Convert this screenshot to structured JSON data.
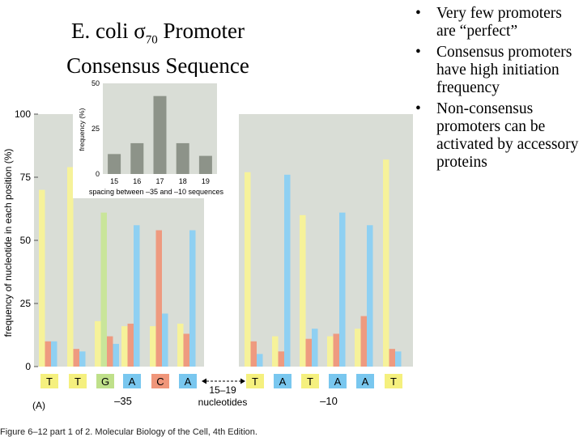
{
  "slide": {
    "title_line1_pre": "E. coli ",
    "sigma": "σ",
    "sigma_sub": "70",
    "title_line1_post": " Promoter",
    "title_line2": "Consensus Sequence",
    "bullets": [
      "Very few promoters are “perfect”",
      "Consensus promoters have high  initiation frequency",
      "Non-consensus promoters can be activated  by accessory proteins"
    ],
    "caption": "Figure 6–12 part 1 of 2. Molecular Biology of the Cell, 4th Edition."
  },
  "chart_data": [
    {
      "type": "bar",
      "ylabel": "frequency of nucleotide in each position (%)",
      "ylim": [
        0,
        100
      ],
      "yticks": [
        0,
        25,
        50,
        75,
        100
      ],
      "panel_label": "(A)",
      "positions": [
        {
          "base": "T",
          "box": "#f5f07e",
          "values": {
            "T": 70,
            "C": 10,
            "A": 10
          }
        },
        {
          "base": "T",
          "box": "#f5f07e",
          "values": {
            "T": 79,
            "C": 7,
            "A": 6
          }
        },
        {
          "base": "G",
          "box": "#bfe08a",
          "values": {
            "T": 18,
            "G": 61,
            "C": 12,
            "A": 9
          }
        },
        {
          "base": "A",
          "box": "#79c7ef",
          "values": {
            "T": 16,
            "C": 17,
            "A": 56
          }
        },
        {
          "base": "C",
          "box": "#f0967a",
          "values": {
            "T": 16,
            "C": 54,
            "A": 21
          }
        },
        {
          "base": "A",
          "box": "#79c7ef",
          "values": {
            "T": 17,
            "C": 13,
            "A": 54
          }
        },
        {
          "base": "T",
          "box": "#f5f07e",
          "values": {
            "T": 77,
            "C": 10,
            "A": 5
          }
        },
        {
          "base": "A",
          "box": "#79c7ef",
          "values": {
            "T": 12,
            "C": 6,
            "A": 76
          }
        },
        {
          "base": "T",
          "box": "#f5f07e",
          "values": {
            "T": 60,
            "C": 11,
            "A": 15
          }
        },
        {
          "base": "A",
          "box": "#79c7ef",
          "values": {
            "T": 12,
            "C": 13,
            "A": 61
          }
        },
        {
          "base": "A",
          "box": "#79c7ef",
          "values": {
            "T": 15,
            "C": 20,
            "A": 56
          }
        },
        {
          "base": "T",
          "box": "#f5f07e",
          "values": {
            "T": 82,
            "C": 7,
            "A": 6
          }
        }
      ],
      "bar_colors": {
        "T": "#f6f29a",
        "G": "#c9e59a",
        "C": "#ee9a80",
        "A": "#8fd0f2"
      },
      "region_labels": [
        "–35",
        "–10"
      ],
      "spacer_label": [
        "15–19",
        "nucleotides"
      ]
    },
    {
      "type": "bar",
      "categories": [
        "15",
        "16",
        "17",
        "18",
        "19"
      ],
      "values": [
        11,
        17,
        43,
        17,
        10
      ],
      "ylim": [
        0,
        50
      ],
      "yticks": [
        0,
        25,
        50
      ],
      "ylabel": "frequency (%)",
      "xlabel": "spacing between –35 and –10 sequences",
      "bar_color": "#8d9389"
    }
  ]
}
